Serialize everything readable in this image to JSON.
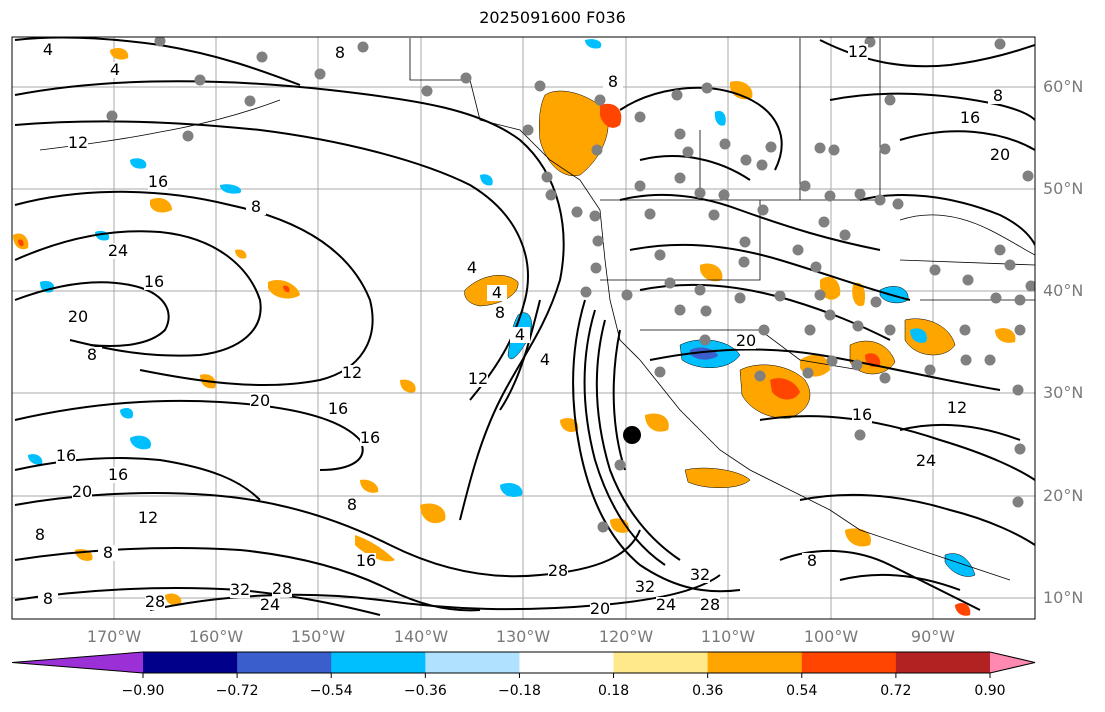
{
  "title": "2025091600 F036",
  "lat_labels": [
    "60°N",
    "50°N",
    "40°N",
    "30°N",
    "20°N",
    "10°N"
  ],
  "lon_labels": [
    "170°W",
    "160°W",
    "150°W",
    "140°W",
    "130°W",
    "120°W",
    "110°W",
    "100°W",
    "90°W"
  ],
  "contour_labels": [
    "4",
    "8",
    "12",
    "16",
    "20",
    "24",
    "28",
    "32"
  ],
  "colorbar": {
    "ticks": [
      "−0.90",
      "−0.72",
      "−0.54",
      "−0.36",
      "−0.18",
      "0.18",
      "0.36",
      "0.54",
      "0.72",
      "0.90"
    ],
    "colors": [
      "#9b30d6",
      "#00008b",
      "#3a5fcd",
      "#00bfff",
      "#b0e2ff",
      "#ffffff",
      "#ffe98a",
      "#ffa500",
      "#ff4500",
      "#b22222",
      "#ff89b0"
    ]
  },
  "colors": {
    "contour": "#000000",
    "positive_shading": "#ffa500",
    "negative_shading": "#00bfff",
    "station_marker": "#808080",
    "gridline": "#a8a8a8"
  }
}
